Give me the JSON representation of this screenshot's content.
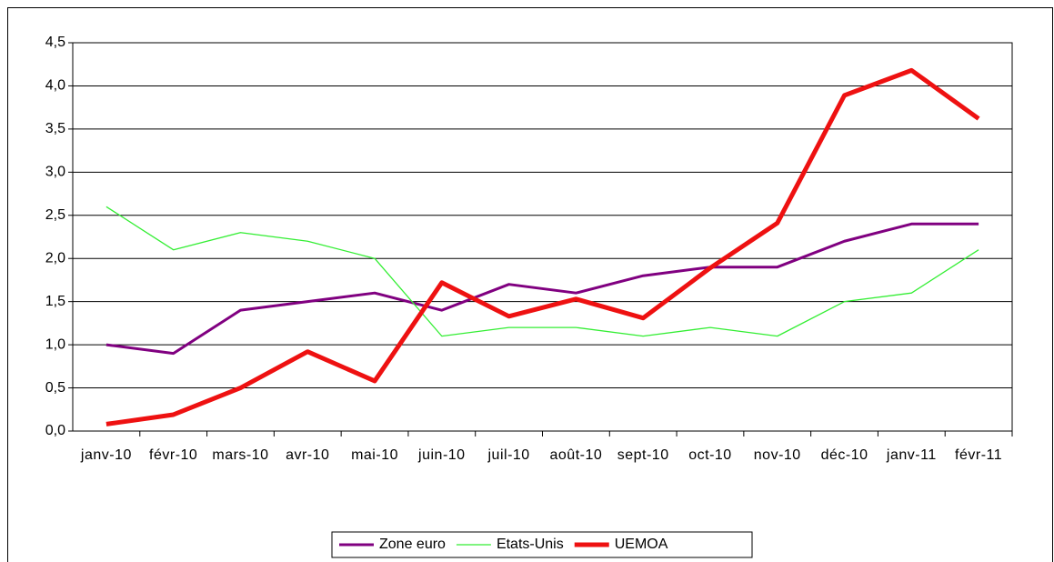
{
  "chart_data": {
    "type": "line",
    "categories": [
      "janv-10",
      "févr-10",
      "mars-10",
      "avr-10",
      "mai-10",
      "juin-10",
      "juil-10",
      "août-10",
      "sept-10",
      "oct-10",
      "nov-10",
      "déc-10",
      "janv-11",
      "févr-11"
    ],
    "series": [
      {
        "name": "Zone euro",
        "color": "#800080",
        "values": [
          1.0,
          0.9,
          1.4,
          1.5,
          1.6,
          1.4,
          1.7,
          1.6,
          1.8,
          1.9,
          1.9,
          2.2,
          2.4,
          2.4
        ]
      },
      {
        "name": "Etats-Unis",
        "color": "#33ee33",
        "values": [
          2.6,
          2.1,
          2.3,
          2.2,
          2.0,
          1.1,
          1.2,
          1.2,
          1.1,
          1.2,
          1.1,
          1.5,
          1.6,
          2.1
        ]
      },
      {
        "name": "UEMOA",
        "color": "#ee1111",
        "values": [
          0.08,
          0.19,
          0.5,
          0.92,
          0.58,
          1.72,
          1.33,
          1.53,
          1.31,
          1.89,
          2.41,
          3.89,
          4.18,
          3.62
        ]
      }
    ],
    "ylim": [
      0,
      4.5
    ],
    "yticks": [
      {
        "value": 0,
        "label": "0,0"
      },
      {
        "value": 0.5,
        "label": "0,5"
      },
      {
        "value": 1,
        "label": "1,0"
      },
      {
        "value": 1.5,
        "label": "1,5"
      },
      {
        "value": 2,
        "label": "2,0"
      },
      {
        "value": 2.5,
        "label": "2,5"
      },
      {
        "value": 3,
        "label": "3,0"
      },
      {
        "value": 3.5,
        "label": "3,5"
      },
      {
        "value": 4,
        "label": "4,0"
      },
      {
        "value": 4.5,
        "label": "4,5"
      }
    ],
    "grid": true,
    "legend": "bottom"
  }
}
